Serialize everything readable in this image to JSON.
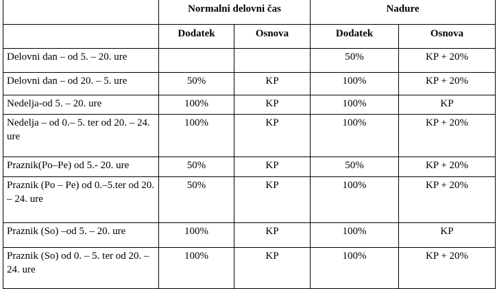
{
  "header": {
    "group1": "Normalni delovni čas",
    "group2": "Nadure",
    "sub": [
      "Dodatek",
      "Osnova",
      "Dodatek",
      "Osnova"
    ]
  },
  "rows": [
    {
      "label": "Delovni dan – od 5. – 20. ure",
      "cells": [
        "",
        "",
        "50%",
        "KP + 20%"
      ]
    },
    {
      "label": "Delovni dan – od 20. – 5. ure",
      "cells": [
        "50%",
        "KP",
        "100%",
        "KP + 20%"
      ]
    },
    {
      "label": "Nedelja-od  5. – 20. ure",
      "cells": [
        "100%",
        "KP",
        "100%",
        "KP"
      ]
    },
    {
      "label": "Nedelja – od 0.– 5. ter od 20. – 24. ure",
      "cells": [
        "100%",
        "KP",
        "100%",
        "KP + 20%"
      ]
    },
    {
      "label": "Praznik(Po–Pe) od 5.- 20. ure",
      "cells": [
        "50%",
        "KP",
        "50%",
        "KP + 20%"
      ]
    },
    {
      "label": "Praznik (Po – Pe) od 0.–5.ter od 20. – 24. ure",
      "cells": [
        "50%",
        "KP",
        "100%",
        "KP + 20%"
      ]
    },
    {
      "label": "Praznik (So) –od 5. – 20. ure",
      "cells": [
        "100%",
        "KP",
        "100%",
        "KP"
      ]
    },
    {
      "label": "Praznik (So) od 0. – 5. ter od 20. – 24. ure",
      "cells": [
        "100%",
        "KP",
        "100%",
        "KP + 20%"
      ]
    }
  ]
}
